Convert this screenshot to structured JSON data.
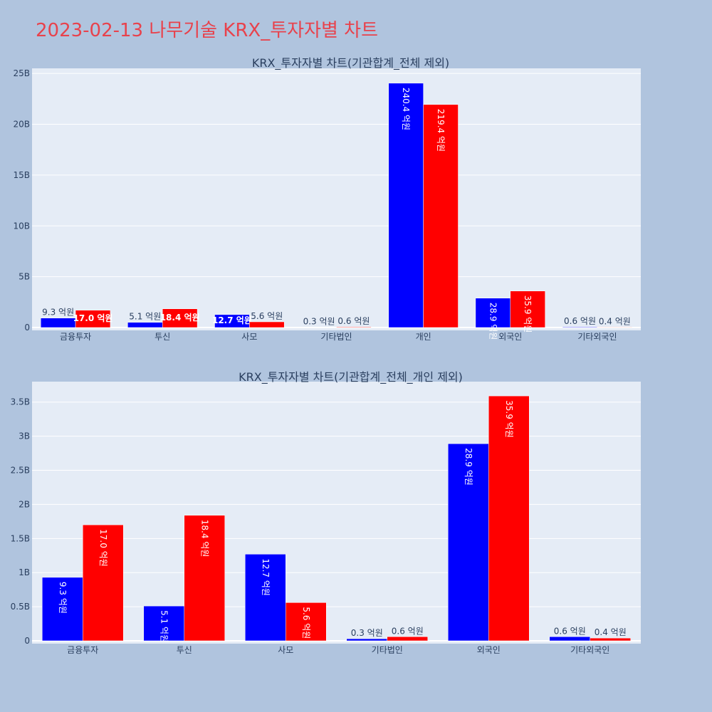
{
  "title": "2023-02-13 나무기술 KRX_투자자별 차트",
  "colors": {
    "buy": "#0000ff",
    "sell": "#ff0000",
    "plot_bg": "#e5ecf6",
    "page_bg": "#b0c4de",
    "title": "#e8424c"
  },
  "chart_data": [
    {
      "type": "bar",
      "title": "KRX_투자자별 차트(기관합계_전체 제외)",
      "categories": [
        "금융투자",
        "투신",
        "사모",
        "기타법인",
        "개인",
        "외국인",
        "기타외국인"
      ],
      "series": [
        {
          "values": [
            930000000,
            510000000,
            1270000000,
            30000000,
            24040000000,
            2890000000,
            60000000
          ],
          "labels": [
            "9.3 억원",
            "5.1 억원",
            "12.7 억원",
            "0.3 억원",
            "240.4 억원",
            "28.9 억원",
            "0.6 억원"
          ]
        },
        {
          "values": [
            1700000000,
            1840000000,
            560000000,
            60000000,
            21940000000,
            3590000000,
            40000000
          ],
          "labels": [
            "17.0 억원",
            "18.4 억원",
            "5.6 억원",
            "0.6 억원",
            "219.4 억원",
            "35.9 억원",
            "0.4 억원"
          ]
        }
      ],
      "ylim": [
        0,
        25500000000
      ],
      "yticks": [
        0,
        5000000000,
        10000000000,
        15000000000,
        20000000000,
        25000000000
      ],
      "ytick_labels": [
        "0",
        "5B",
        "10B",
        "15B",
        "20B",
        "25B"
      ],
      "grid": true
    },
    {
      "type": "bar",
      "title": "KRX_투자자별 차트(기관합계_전체_개인 제외)",
      "categories": [
        "금융투자",
        "투신",
        "사모",
        "기타법인",
        "외국인",
        "기타외국인"
      ],
      "series": [
        {
          "values": [
            930000000,
            510000000,
            1270000000,
            30000000,
            2890000000,
            60000000
          ],
          "labels": [
            "9.3 억원",
            "5.1 억원",
            "12.7 억원",
            "0.3 억원",
            "28.9 억원",
            "0.6 억원"
          ]
        },
        {
          "values": [
            1700000000,
            1840000000,
            560000000,
            60000000,
            3590000000,
            40000000
          ],
          "labels": [
            "17.0 억원",
            "18.4 억원",
            "5.6 억원",
            "0.6 억원",
            "35.9 억원",
            "0.4 억원"
          ]
        }
      ],
      "ylim": [
        0,
        3800000000
      ],
      "yticks": [
        0,
        500000000,
        1000000000,
        1500000000,
        2000000000,
        2500000000,
        3000000000,
        3500000000
      ],
      "ytick_labels": [
        "0",
        "0.5B",
        "1B",
        "1.5B",
        "2B",
        "2.5B",
        "3B",
        "3.5B"
      ],
      "grid": true
    }
  ]
}
